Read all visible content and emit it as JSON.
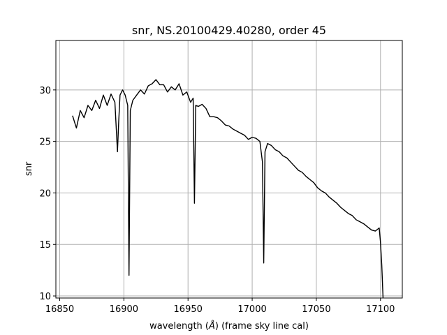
{
  "chart_data": {
    "type": "line",
    "title": "snr, NS.20100429.40280, order 45",
    "xlabel_prefix": "wavelength (",
    "xlabel_unit": "Å",
    "xlabel_suffix": ") (frame sky line cal)",
    "ylabel": "snr",
    "xlim": [
      16847,
      17117
    ],
    "ylim": [
      9.8,
      34.8
    ],
    "xticks": [
      16850,
      16900,
      16950,
      17000,
      17050,
      17100
    ],
    "yticks": [
      10,
      15,
      20,
      25,
      30
    ],
    "grid": true,
    "line_color": "#000000",
    "series": [
      {
        "x": [
          16860,
          16863,
          16866,
          16869,
          16872,
          16875,
          16878,
          16881,
          16884,
          16887,
          16890,
          16893,
          16895,
          16896,
          16897,
          16899,
          16901,
          16903,
          16904,
          16905,
          16907,
          16910,
          16913,
          16916,
          16919,
          16922,
          16925,
          16928,
          16931,
          16934,
          16937,
          16940,
          16943,
          16946,
          16949,
          16952,
          16954,
          16955,
          16956,
          16958,
          16961,
          16964,
          16967,
          16970,
          16973,
          16976,
          16979,
          16982,
          16985,
          16988,
          16991,
          16994,
          16997,
          17000,
          17003,
          17006,
          17008,
          17009,
          17010,
          17012,
          17015,
          17018,
          17021,
          17024,
          17027,
          17030,
          17033,
          17036,
          17039,
          17042,
          17045,
          17048,
          17051,
          17054,
          17057,
          17060,
          17063,
          17066,
          17069,
          17072,
          17075,
          17078,
          17081,
          17084,
          17087,
          17090,
          17093,
          17096,
          17099,
          17100,
          17101,
          17102
        ],
        "y": [
          27.5,
          26.3,
          28.0,
          27.3,
          28.5,
          28.0,
          29.0,
          28.2,
          29.5,
          28.5,
          29.6,
          28.8,
          24.0,
          27.0,
          29.5,
          30.0,
          29.5,
          28.5,
          12.0,
          28.0,
          29.0,
          29.5,
          30.0,
          29.6,
          30.4,
          30.6,
          31.0,
          30.5,
          30.5,
          29.8,
          30.3,
          30.0,
          30.6,
          29.5,
          29.8,
          28.8,
          29.2,
          19.0,
          28.5,
          28.4,
          28.6,
          28.2,
          27.4,
          27.4,
          27.3,
          27.0,
          26.6,
          26.5,
          26.2,
          26.0,
          25.8,
          25.6,
          25.2,
          25.4,
          25.3,
          25.0,
          23.0,
          13.2,
          24.0,
          24.8,
          24.6,
          24.2,
          24.0,
          23.6,
          23.4,
          23.0,
          22.6,
          22.2,
          22.0,
          21.6,
          21.3,
          21.0,
          20.5,
          20.2,
          20.0,
          19.6,
          19.3,
          19.0,
          18.6,
          18.3,
          18.0,
          17.8,
          17.4,
          17.2,
          17.0,
          16.7,
          16.4,
          16.3,
          16.6,
          15.2,
          13.0,
          9.6
        ]
      }
    ]
  }
}
